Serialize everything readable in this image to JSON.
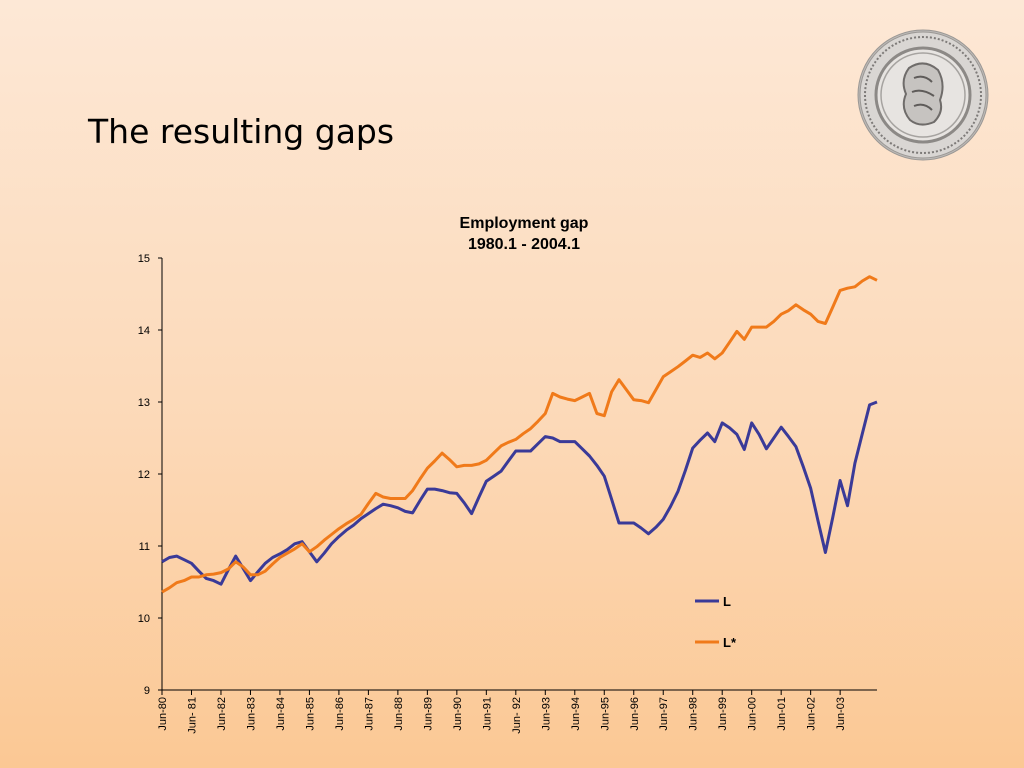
{
  "slide": {
    "title": "The resulting gaps"
  },
  "chart_data": {
    "type": "line",
    "title": "Employment gap",
    "subtitle": "1980.1 - 2004.1",
    "xlabel": "",
    "ylabel": "",
    "ylim": [
      9,
      15
    ],
    "yticks": [
      "15",
      "14",
      "13",
      "12",
      "11",
      "10",
      "9"
    ],
    "xticks": [
      "Jun-80",
      "Jun- 81",
      "Jun-82",
      "Jun-83",
      "Jun-84",
      "Jun-85",
      "Jun-86",
      "Jun-87",
      "Jun-88",
      "Jun-89",
      "Jun-90",
      "Jun-91",
      "Jun- 92",
      "Jun-93",
      "Jun-94",
      "Jun-95",
      "Jun-96",
      "Jun-97",
      "Jun-98",
      "Jun-99",
      "Jun-00",
      "Jun-01",
      "Jun-02",
      "Jun-03"
    ],
    "grid": false,
    "legend_position": "lower-right",
    "series": [
      {
        "name": "L",
        "color": "#3a3a98",
        "values": [
          10.78,
          10.84,
          10.86,
          10.81,
          10.76,
          10.65,
          10.55,
          10.52,
          10.47,
          10.67,
          10.86,
          10.69,
          10.52,
          10.64,
          10.76,
          10.84,
          10.89,
          10.95,
          11.03,
          11.06,
          10.92,
          10.78,
          10.9,
          11.03,
          11.13,
          11.22,
          11.29,
          11.38,
          11.45,
          11.52,
          11.58,
          11.56,
          11.53,
          11.48,
          11.46,
          11.63,
          11.79,
          11.79,
          11.77,
          11.74,
          11.73,
          11.6,
          11.45,
          11.68,
          11.9,
          11.97,
          12.04,
          12.18,
          12.32,
          12.32,
          12.32,
          12.42,
          12.52,
          12.5,
          12.45,
          12.45,
          12.45,
          12.35,
          12.25,
          12.12,
          11.97,
          11.65,
          11.32,
          11.32,
          11.32,
          11.25,
          11.17,
          11.26,
          11.37,
          11.55,
          11.76,
          12.05,
          12.36,
          12.47,
          12.57,
          12.45,
          12.71,
          12.64,
          12.55,
          12.34,
          12.71,
          12.55,
          12.35,
          12.5,
          12.65,
          12.52,
          12.38,
          12.1,
          11.8,
          11.35,
          10.91,
          11.4,
          11.91,
          11.56,
          12.15,
          12.56,
          12.96,
          13.0
        ]
      },
      {
        "name": "L*",
        "color": "#f07a1a",
        "values": [
          10.36,
          10.42,
          10.49,
          10.52,
          10.57,
          10.57,
          10.6,
          10.61,
          10.63,
          10.68,
          10.78,
          10.71,
          10.6,
          10.6,
          10.65,
          10.75,
          10.84,
          10.9,
          10.96,
          11.03,
          10.92,
          10.99,
          11.08,
          11.16,
          11.24,
          11.31,
          11.37,
          11.44,
          11.59,
          11.73,
          11.68,
          11.66,
          11.66,
          11.66,
          11.77,
          11.93,
          12.08,
          12.18,
          12.29,
          12.2,
          12.1,
          12.12,
          12.12,
          12.14,
          12.19,
          12.29,
          12.39,
          12.44,
          12.48,
          12.56,
          12.63,
          12.73,
          12.84,
          13.12,
          13.07,
          13.04,
          13.02,
          13.07,
          13.12,
          12.84,
          12.81,
          13.14,
          13.31,
          13.17,
          13.03,
          13.02,
          12.99,
          13.17,
          13.35,
          13.42,
          13.49,
          13.57,
          13.65,
          13.62,
          13.68,
          13.6,
          13.68,
          13.83,
          13.98,
          13.87,
          14.04,
          14.04,
          14.04,
          14.12,
          14.22,
          14.27,
          14.35,
          14.28,
          14.22,
          14.12,
          14.09,
          14.32,
          14.55,
          14.58,
          14.6,
          14.68,
          14.74,
          14.69
        ]
      }
    ]
  },
  "colors": {
    "background_top": "#fde8d6",
    "background_bottom": "#fbc894"
  },
  "icons": {
    "seal": "central-bank-seal-icon"
  }
}
